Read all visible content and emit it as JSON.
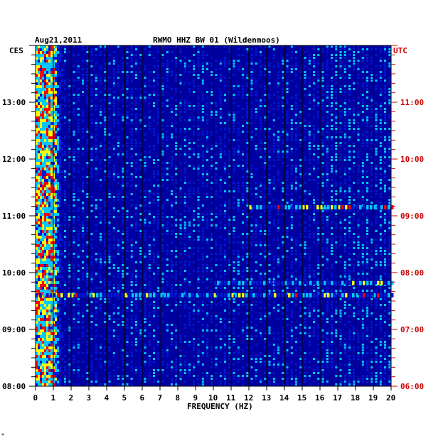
{
  "header": {
    "date": "Aug21,2011",
    "station": "RWMO HHZ BW 01 (Wildenmoos)",
    "left_zone": "CES",
    "right_zone": "UTC"
  },
  "chart_data": {
    "type": "heatmap",
    "title": "RWMO HHZ BW 01 (Wildenmoos)",
    "xlabel": "FREQUENCY (HZ)",
    "xlim": [
      0,
      20
    ],
    "x_ticks": [
      "0",
      "1",
      "2",
      "3",
      "4",
      "5",
      "6",
      "7",
      "8",
      "9",
      "10",
      "11",
      "12",
      "13",
      "14",
      "15",
      "16",
      "17",
      "18",
      "19",
      "20"
    ],
    "y_ticks_left": [
      "13:00",
      "12:00",
      "11:00",
      "10:00",
      "09:00",
      "08:00"
    ],
    "y_ticks_right": [
      "11:00",
      "10:00",
      "09:00",
      "08:00",
      "07:00",
      "06:00"
    ],
    "y_range_left": [
      "08:00",
      "14:00"
    ],
    "y_range_right": [
      "06:00",
      "12:00"
    ],
    "colors": {
      "background": "#0000a0",
      "low": "#0018d0",
      "mid": "#00c8ff",
      "high": "#ffff00",
      "peak": "#ff0000"
    },
    "strong_events": [
      {
        "time_local": "09:36",
        "freq_range": [
          0,
          20
        ],
        "intensity": "high"
      },
      {
        "time_local": "11:09",
        "freq_range": [
          12,
          20
        ],
        "intensity": "high"
      },
      {
        "time_local": "09:49",
        "freq_range": [
          10,
          20
        ],
        "intensity": "medium"
      }
    ],
    "low_freq_band": {
      "freq_range": [
        0,
        1
      ],
      "intensity": "high"
    }
  },
  "footer_mark": "*"
}
